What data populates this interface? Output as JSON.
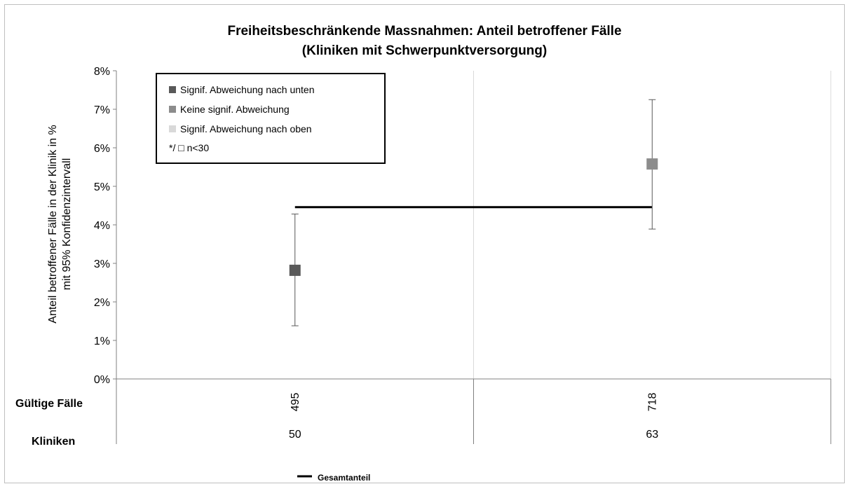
{
  "chart_data": {
    "type": "scatter",
    "title_line1": "Freiheitsbeschränkende Massnahmen: Anteil betroffener Fälle",
    "title_line2": "(Kliniken mit Schwerpunktversorgung)",
    "ylabel_line1": "Anteil betroffener Fälle in der Klinik in %",
    "ylabel_line2": "mit 95% Konfidenzintervall",
    "ylim": [
      0,
      8
    ],
    "yticks": [
      "0%",
      "1%",
      "2%",
      "3%",
      "4%",
      "5%",
      "6%",
      "7%",
      "8%"
    ],
    "grid": "vertical category separators",
    "points": [
      {
        "value": 2.82,
        "ci_low": 1.38,
        "ci_high": 4.28,
        "category": "Signif. Abweichung nach unten",
        "faelle": "495",
        "kliniken": "50"
      },
      {
        "value": 5.58,
        "ci_low": 3.89,
        "ci_high": 7.25,
        "category": "Keine signif. Abweichung",
        "faelle": "718",
        "kliniken": "63"
      }
    ],
    "overall_rate": 4.46,
    "table_rows": {
      "faelle_label": "Gültige Fälle",
      "kliniken_label": "Kliniken"
    },
    "legend": {
      "placement": "top-left",
      "items": [
        {
          "label": "Signif. Abweichung nach unten",
          "color": "#595959"
        },
        {
          "label": "Keine signif. Abweichung",
          "color": "#8c8c8c"
        },
        {
          "label": "Signif. Abweichung nach oben",
          "color": "#d9d9d9"
        }
      ],
      "note": "*/ □ n<30"
    },
    "bottom_legend": "Gesamtanteil",
    "colors": {
      "low": "#595959",
      "none": "#8c8c8c",
      "high": "#d9d9d9",
      "line": "#000000"
    }
  }
}
